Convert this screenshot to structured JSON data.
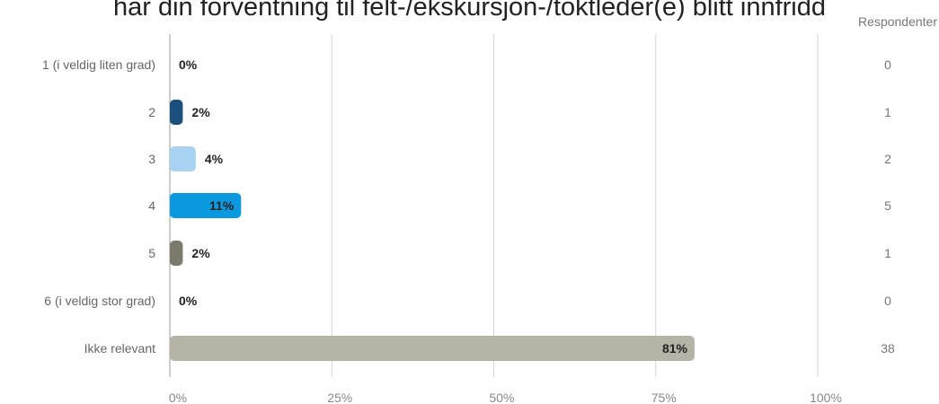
{
  "title": "har din forventning til felt-/ekskursjon-/toktleder(e) blitt innfridd",
  "chart_data": {
    "type": "bar",
    "orientation": "horizontal",
    "title": "har din forventning til felt-/ekskursjon-/toktleder(e) blitt innfridd",
    "categories": [
      "1 (i veldig liten grad)",
      "2",
      "3",
      "4",
      "5",
      "6 (i veldig stor grad)",
      "Ikke relevant"
    ],
    "values": [
      0,
      2,
      4,
      11,
      2,
      0,
      81
    ],
    "value_labels": [
      "0%",
      "2%",
      "4%",
      "11%",
      "2%",
      "0%",
      "81%"
    ],
    "respondents": [
      0,
      1,
      2,
      5,
      1,
      0,
      38
    ],
    "respondents_header": "Respondenter",
    "xlim": [
      0,
      100
    ],
    "xticks": [
      "0%",
      "25%",
      "50%",
      "75%",
      "100%"
    ],
    "grid": true,
    "colors": [
      "#1a4f7e",
      "#1a4f7e",
      "#a9d3f2",
      "#0b9ae0",
      "#7b7a6b",
      "#7b7a6b",
      "#b5b4a7"
    ]
  }
}
